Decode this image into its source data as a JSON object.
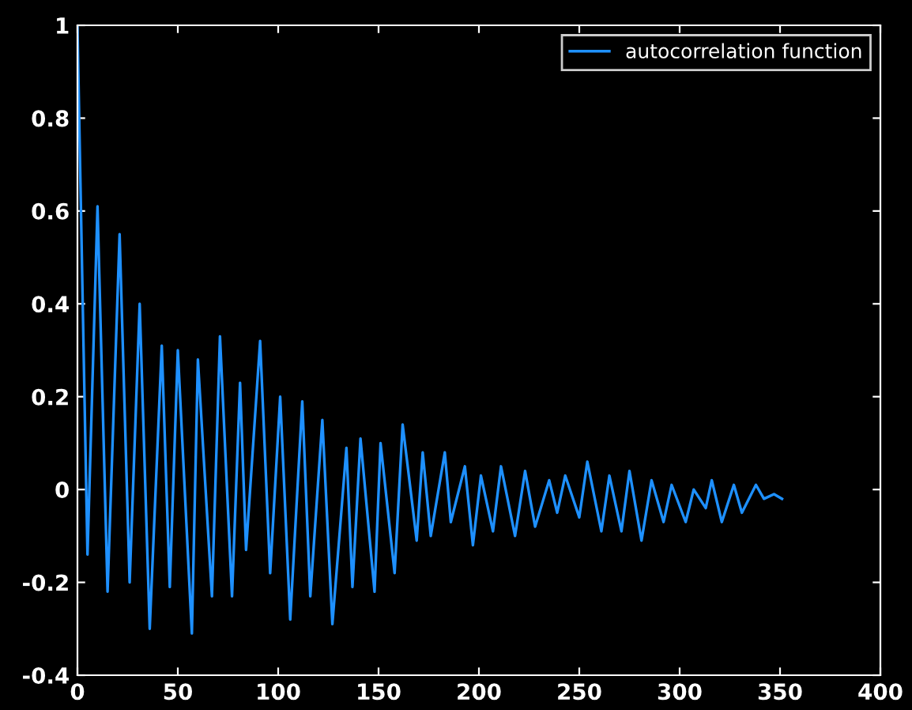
{
  "chart_data": {
    "type": "line",
    "x": [
      0,
      5,
      10,
      15,
      21,
      26,
      31,
      36,
      42,
      46,
      50,
      57,
      60,
      67,
      71,
      77,
      81,
      84,
      91,
      96,
      101,
      106,
      112,
      116,
      122,
      127,
      134,
      137,
      141,
      148,
      151,
      158,
      162,
      169,
      172,
      176,
      183,
      186,
      193,
      197,
      201,
      207,
      211,
      218,
      223,
      228,
      235,
      239,
      243,
      250,
      254,
      261,
      265,
      271,
      275,
      281,
      286,
      292,
      296,
      303,
      307,
      313,
      316,
      321,
      327,
      331,
      338,
      342,
      347,
      351
    ],
    "series": [
      {
        "name": "autocorrelation function",
        "color": "#1e90ff",
        "values": [
          1.0,
          -0.14,
          0.61,
          -0.22,
          0.55,
          -0.2,
          0.4,
          -0.3,
          0.31,
          -0.21,
          0.3,
          -0.31,
          0.28,
          -0.23,
          0.33,
          -0.23,
          0.23,
          -0.13,
          0.32,
          -0.18,
          0.2,
          -0.28,
          0.19,
          -0.23,
          0.15,
          -0.29,
          0.09,
          -0.21,
          0.11,
          -0.22,
          0.1,
          -0.18,
          0.14,
          -0.11,
          0.08,
          -0.1,
          0.08,
          -0.07,
          0.05,
          -0.12,
          0.03,
          -0.09,
          0.05,
          -0.1,
          0.04,
          -0.08,
          0.02,
          -0.05,
          0.03,
          -0.06,
          0.06,
          -0.09,
          0.03,
          -0.09,
          0.04,
          -0.11,
          0.02,
          -0.07,
          0.01,
          -0.07,
          0.0,
          -0.04,
          0.02,
          -0.07,
          0.01,
          -0.05,
          0.01,
          -0.02,
          -0.01,
          -0.02
        ]
      }
    ],
    "xlim": [
      0,
      400
    ],
    "xticks": [
      0,
      50,
      100,
      150,
      200,
      250,
      300,
      350,
      400
    ],
    "ylim": [
      -0.4,
      1
    ],
    "yticks": [
      {
        "value": -0.4,
        "label": "-0.4"
      },
      {
        "value": -0.2,
        "label": "-0.2"
      },
      0,
      0.2,
      0.4,
      0.6,
      0.8,
      1
    ],
    "grid": false,
    "legend": "top right"
  }
}
